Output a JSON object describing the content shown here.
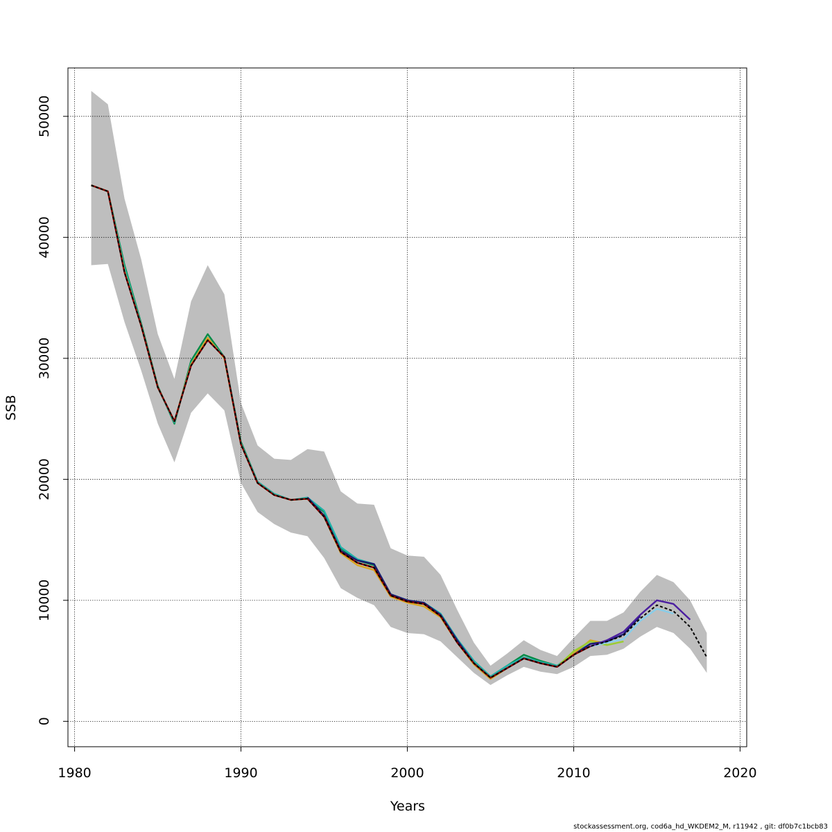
{
  "chart_data": {
    "type": "line",
    "title": "",
    "xlabel": "Years",
    "ylabel": "SSB",
    "xlim": [
      1979.6,
      2020.4
    ],
    "ylim": [
      -2100,
      54000
    ],
    "x_ticks": [
      1980,
      1990,
      2000,
      2010,
      2020
    ],
    "y_ticks": [
      0,
      10000,
      20000,
      30000,
      40000,
      50000
    ],
    "grid": true,
    "confidence_band": {
      "color": "#bebebe",
      "years": [
        1981,
        1982,
        1983,
        1984,
        1985,
        1986,
        1987,
        1988,
        1989,
        1990,
        1991,
        1992,
        1993,
        1994,
        1995,
        1996,
        1997,
        1998,
        1999,
        2000,
        2001,
        2002,
        2003,
        2004,
        2005,
        2006,
        2007,
        2008,
        2009,
        2010,
        2011,
        2012,
        2013,
        2014,
        2015,
        2016,
        2017,
        2018
      ],
      "upper": [
        52100,
        51000,
        43200,
        38200,
        32000,
        28300,
        34700,
        37700,
        35300,
        26300,
        22800,
        21700,
        21600,
        22500,
        22300,
        19000,
        18000,
        17900,
        14300,
        13700,
        13600,
        12100,
        9200,
        6500,
        4600,
        5600,
        6700,
        5900,
        5400,
        6900,
        8300,
        8300,
        9000,
        10700,
        12100,
        11500,
        10000,
        7300
      ],
      "lower": [
        37700,
        37800,
        33000,
        29000,
        24600,
        21400,
        25500,
        27100,
        25700,
        19700,
        17300,
        16300,
        15600,
        15300,
        13500,
        11000,
        10200,
        9600,
        7800,
        7300,
        7200,
        6600,
        5300,
        4000,
        3000,
        3800,
        4500,
        4100,
        3900,
        4500,
        5400,
        5500,
        6000,
        7000,
        7800,
        7300,
        6000,
        4000
      ]
    },
    "series": [
      {
        "color": "#008b45",
        "x": [
          1981,
          1982,
          1983,
          1984,
          1985,
          1986,
          1987,
          1988,
          1989,
          1990,
          1991,
          1992,
          1993,
          1994,
          1995,
          1996,
          1997,
          1998,
          1999,
          2000,
          2001,
          2002,
          2003,
          2004,
          2005,
          2006,
          2007,
          2008,
          2009
        ],
        "y": [
          44300,
          43800,
          37700,
          32900,
          27700,
          24600,
          29800,
          32000,
          30100,
          23100,
          19800,
          18800,
          18300,
          18400,
          17300,
          14300,
          13300,
          12900,
          10500,
          9900,
          9700,
          8800,
          6700,
          4900,
          3700,
          4600,
          5500,
          5000,
          4600
        ]
      },
      {
        "color": "#20b2aa",
        "x": [
          1981,
          1982,
          1983,
          1984,
          1985,
          1986,
          1987,
          1988,
          1989,
          1990,
          1991,
          1992,
          1993,
          1994,
          1995,
          1996,
          1997,
          1998,
          1999,
          2000,
          2001,
          2002,
          2003,
          2004,
          2005,
          2006,
          2007,
          2008,
          2009,
          2010,
          2011
        ],
        "y": [
          44300,
          43800,
          37500,
          32800,
          27600,
          24700,
          29600,
          31700,
          30100,
          23000,
          19800,
          18800,
          18300,
          18500,
          17400,
          14400,
          13400,
          13000,
          10500,
          10000,
          9800,
          8900,
          6800,
          5000,
          3700,
          4600,
          5300,
          4900,
          4600,
          5600,
          6400
        ]
      },
      {
        "color": "#daa520",
        "x": [
          1981,
          1982,
          1983,
          1984,
          1985,
          1986,
          1987,
          1988,
          1989,
          1990,
          1991,
          1992,
          1993,
          1994,
          1995,
          1996,
          1997,
          1998,
          1999,
          2000,
          2001,
          2002,
          2003,
          2004,
          2005,
          2006,
          2007,
          2008,
          2009,
          2010,
          2011,
          2012
        ],
        "y": [
          44300,
          43800,
          37200,
          32700,
          27600,
          24800,
          29500,
          31700,
          30000,
          22900,
          19700,
          18700,
          18300,
          18400,
          16900,
          13900,
          12900,
          12500,
          10300,
          9800,
          9500,
          8600,
          6500,
          4700,
          3500,
          4400,
          5200,
          4800,
          4500,
          5600,
          6700,
          6400
        ]
      },
      {
        "color": "#9acd32",
        "x": [
          2009,
          2010,
          2011,
          2012,
          2013
        ],
        "y": [
          4500,
          5800,
          6600,
          6300,
          6600
        ]
      },
      {
        "color": "#87ceeb",
        "x": [
          2011,
          2012,
          2013,
          2014,
          2015,
          2016
        ],
        "y": [
          6200,
          6500,
          6800,
          8300,
          9300,
          8900
        ]
      },
      {
        "color": "#191970",
        "x": [
          1994,
          1995,
          1996,
          1997,
          1998,
          1999,
          2000,
          2001,
          2002,
          2003,
          2004,
          2005,
          2006,
          2007,
          2008,
          2009,
          2010,
          2011,
          2012,
          2013,
          2014
        ],
        "y": [
          18500,
          17000,
          14100,
          13300,
          13000,
          10500,
          10000,
          9800,
          8800,
          6700,
          4800,
          3600,
          4400,
          5200,
          4800,
          4500,
          5500,
          6400,
          6600,
          7200,
          8700
        ]
      },
      {
        "color": "#4b1ea0",
        "x": [
          2011,
          2012,
          2013,
          2014,
          2015,
          2016,
          2017
        ],
        "y": [
          6200,
          6700,
          7400,
          8800,
          10000,
          9700,
          8400
        ]
      },
      {
        "color": "#8b0000",
        "x": [
          1981,
          1982,
          1983,
          1984,
          1985,
          1986,
          1987,
          1988,
          1989,
          1990,
          1991,
          1992,
          1993,
          1994,
          1995,
          1996,
          1997,
          1998,
          1999,
          2000,
          2001,
          2002,
          2003,
          2004,
          2005,
          2006,
          2007,
          2008,
          2009,
          2010,
          2011
        ],
        "y": [
          44300,
          43800,
          37100,
          32700,
          27600,
          24800,
          29400,
          31500,
          30100,
          22900,
          19700,
          18700,
          18300,
          18400,
          16900,
          14000,
          13100,
          12700,
          10400,
          9900,
          9700,
          8700,
          6500,
          4800,
          3600,
          4400,
          5200,
          4800,
          4500,
          5500,
          6200
        ]
      },
      {
        "color": "#000000",
        "dashed": true,
        "x": [
          1981,
          1982,
          1983,
          1984,
          1985,
          1986,
          1987,
          1988,
          1989,
          1990,
          1991,
          1992,
          1993,
          1994,
          1995,
          1996,
          1997,
          1998,
          1999,
          2000,
          2001,
          2002,
          2003,
          2004,
          2005,
          2006,
          2007,
          2008,
          2009,
          2010,
          2011,
          2012,
          2013,
          2014,
          2015,
          2016,
          2017,
          2018
        ],
        "y": [
          44300,
          43800,
          37100,
          32700,
          27600,
          24800,
          29400,
          31500,
          30100,
          22900,
          19700,
          18700,
          18300,
          18400,
          16900,
          14000,
          13100,
          12700,
          10400,
          9900,
          9700,
          8700,
          6500,
          4800,
          3600,
          4400,
          5200,
          4800,
          4500,
          5500,
          6200,
          6600,
          7100,
          8500,
          9600,
          9100,
          7800,
          5300
        ]
      }
    ]
  },
  "footer": "stockassessment.org, cod6a_hd_WKDEM2_M, r11942 , git: df0b7c1bcb83"
}
